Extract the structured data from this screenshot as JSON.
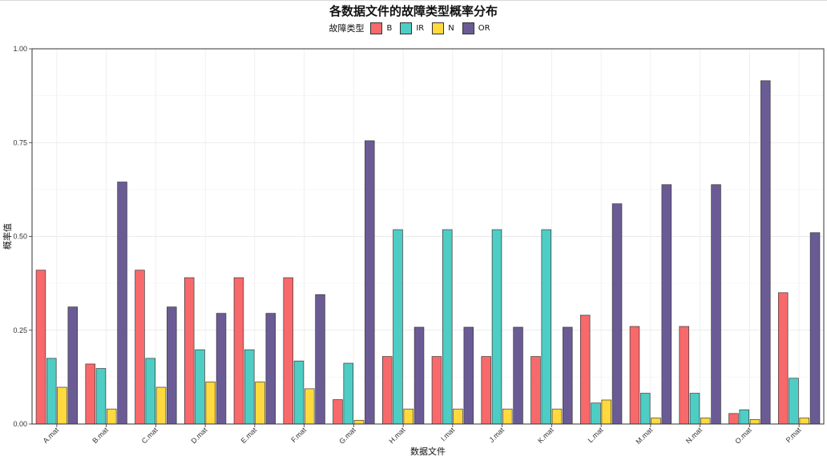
{
  "chart_data": {
    "type": "bar",
    "title": "各数据文件的故障类型概率分布",
    "xlabel": "数据文件",
    "ylabel": "概率值",
    "legend_title": "故障类型",
    "legend_position": "top",
    "grid": true,
    "ylim": [
      0,
      1
    ],
    "yticks": [
      0,
      0.25,
      0.5,
      0.75,
      1
    ],
    "ytick_labels": [
      "0.00",
      "0.25",
      "0.50",
      "0.75",
      "1.00"
    ],
    "categories": [
      "A.mat",
      "B.mat",
      "C.mat",
      "D.mat",
      "E.mat",
      "F.mat",
      "G.mat",
      "H.mat",
      "I.mat",
      "J.mat",
      "K.mat",
      "L.mat",
      "M.mat",
      "N.mat",
      "O.mat",
      "P.mat"
    ],
    "series": [
      {
        "name": "B",
        "color": "#F8696B",
        "values": [
          0.41,
          0.16,
          0.41,
          0.39,
          0.39,
          0.39,
          0.065,
          0.18,
          0.18,
          0.18,
          0.18,
          0.29,
          0.26,
          0.26,
          0.028,
          0.35
        ]
      },
      {
        "name": "IR",
        "color": "#4ECDC4",
        "values": [
          0.175,
          0.148,
          0.175,
          0.198,
          0.198,
          0.168,
          0.162,
          0.518,
          0.518,
          0.518,
          0.518,
          0.056,
          0.082,
          0.082,
          0.038,
          0.122
        ]
      },
      {
        "name": "N",
        "color": "#FFD93D",
        "values": [
          0.098,
          0.04,
          0.098,
          0.112,
          0.112,
          0.094,
          0.01,
          0.04,
          0.04,
          0.04,
          0.04,
          0.064,
          0.016,
          0.016,
          0.012,
          0.016
        ]
      },
      {
        "name": "OR",
        "color": "#6B5B95",
        "values": [
          0.312,
          0.645,
          0.312,
          0.295,
          0.295,
          0.345,
          0.755,
          0.258,
          0.258,
          0.258,
          0.258,
          0.587,
          0.638,
          0.638,
          0.915,
          0.51
        ]
      }
    ]
  }
}
